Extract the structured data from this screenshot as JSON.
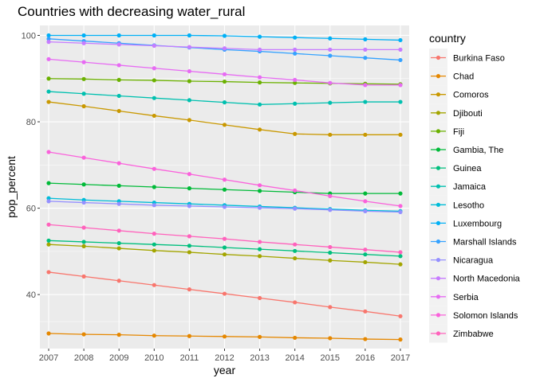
{
  "chart_data": {
    "type": "line",
    "title": "Countries with decreasing water_rural",
    "xlabel": "year",
    "ylabel": "pop_percent",
    "x": [
      2007,
      2008,
      2009,
      2010,
      2011,
      2012,
      2013,
      2014,
      2015,
      2016,
      2017
    ],
    "xlim": [
      2006.75,
      2017.25
    ],
    "ylim": [
      27.5,
      102.3
    ],
    "yticks": [
      40,
      60,
      80,
      100
    ],
    "grid": true,
    "legend_title": "country",
    "legend_position": "right",
    "series": [
      {
        "name": "Burkina Faso",
        "color": "#F8766D",
        "values": [
          45.2,
          44.2,
          43.2,
          42.2,
          41.2,
          40.2,
          39.2,
          38.2,
          37.1,
          36.1,
          35.0
        ]
      },
      {
        "name": "Chad",
        "color": "#E58700",
        "values": [
          31.0,
          30.8,
          30.7,
          30.5,
          30.4,
          30.3,
          30.2,
          30.0,
          29.9,
          29.7,
          29.6
        ]
      },
      {
        "name": "Comoros",
        "color": "#C99800",
        "values": [
          84.6,
          83.6,
          82.5,
          81.4,
          80.4,
          79.3,
          78.2,
          77.2,
          77.0,
          77.0,
          77.0
        ]
      },
      {
        "name": "Djibouti",
        "color": "#A3A500",
        "values": [
          51.6,
          51.2,
          50.7,
          50.2,
          49.8,
          49.3,
          48.9,
          48.4,
          47.9,
          47.5,
          47.0
        ]
      },
      {
        "name": "Fiji",
        "color": "#6BB100",
        "values": [
          90.0,
          89.9,
          89.7,
          89.6,
          89.4,
          89.3,
          89.1,
          89.0,
          88.9,
          88.8,
          88.7
        ]
      },
      {
        "name": "Gambia, The",
        "color": "#00BA38",
        "values": [
          65.8,
          65.5,
          65.2,
          64.9,
          64.6,
          64.3,
          64.0,
          63.7,
          63.4,
          63.4,
          63.4
        ]
      },
      {
        "name": "Guinea",
        "color": "#00BF7D",
        "values": [
          52.5,
          52.2,
          51.9,
          51.6,
          51.3,
          50.9,
          50.5,
          50.1,
          49.7,
          49.3,
          48.9
        ]
      },
      {
        "name": "Jamaica",
        "color": "#00C0AF",
        "values": [
          87.0,
          86.5,
          86.0,
          85.5,
          85.0,
          84.5,
          84.0,
          84.2,
          84.4,
          84.6,
          84.6
        ]
      },
      {
        "name": "Lesotho",
        "color": "#00BCD8",
        "values": [
          62.3,
          61.9,
          61.6,
          61.3,
          61.0,
          60.7,
          60.4,
          60.1,
          59.8,
          59.5,
          59.3
        ]
      },
      {
        "name": "Luxembourg",
        "color": "#00B0F6",
        "values": [
          100.0,
          100.0,
          100.0,
          100.0,
          100.0,
          99.9,
          99.7,
          99.5,
          99.3,
          99.1,
          98.9
        ]
      },
      {
        "name": "Marshall Islands",
        "color": "#35A2FF",
        "values": [
          99.2,
          98.7,
          98.2,
          97.7,
          97.2,
          96.7,
          96.3,
          95.8,
          95.3,
          94.8,
          94.3
        ]
      },
      {
        "name": "Nicaragua",
        "color": "#9590FF",
        "values": [
          61.6,
          61.3,
          61.0,
          60.7,
          60.5,
          60.3,
          60.1,
          59.9,
          59.6,
          59.3,
          59.1
        ]
      },
      {
        "name": "North Macedonia",
        "color": "#C77CFF",
        "values": [
          98.5,
          98.2,
          97.9,
          97.6,
          97.3,
          97.0,
          96.7,
          96.7,
          96.7,
          96.7,
          96.7
        ]
      },
      {
        "name": "Serbia",
        "color": "#E76BF3",
        "values": [
          94.5,
          93.8,
          93.1,
          92.4,
          91.7,
          91.0,
          90.3,
          89.7,
          89.0,
          88.5,
          88.5
        ]
      },
      {
        "name": "Solomon Islands",
        "color": "#FA62DB",
        "values": [
          73.0,
          71.7,
          70.4,
          69.1,
          67.9,
          66.6,
          65.3,
          64.1,
          62.8,
          61.6,
          60.5
        ]
      },
      {
        "name": "Zimbabwe",
        "color": "#FF62BC",
        "values": [
          56.2,
          55.5,
          54.8,
          54.1,
          53.5,
          52.9,
          52.2,
          51.6,
          51.0,
          50.4,
          49.8
        ]
      }
    ]
  }
}
